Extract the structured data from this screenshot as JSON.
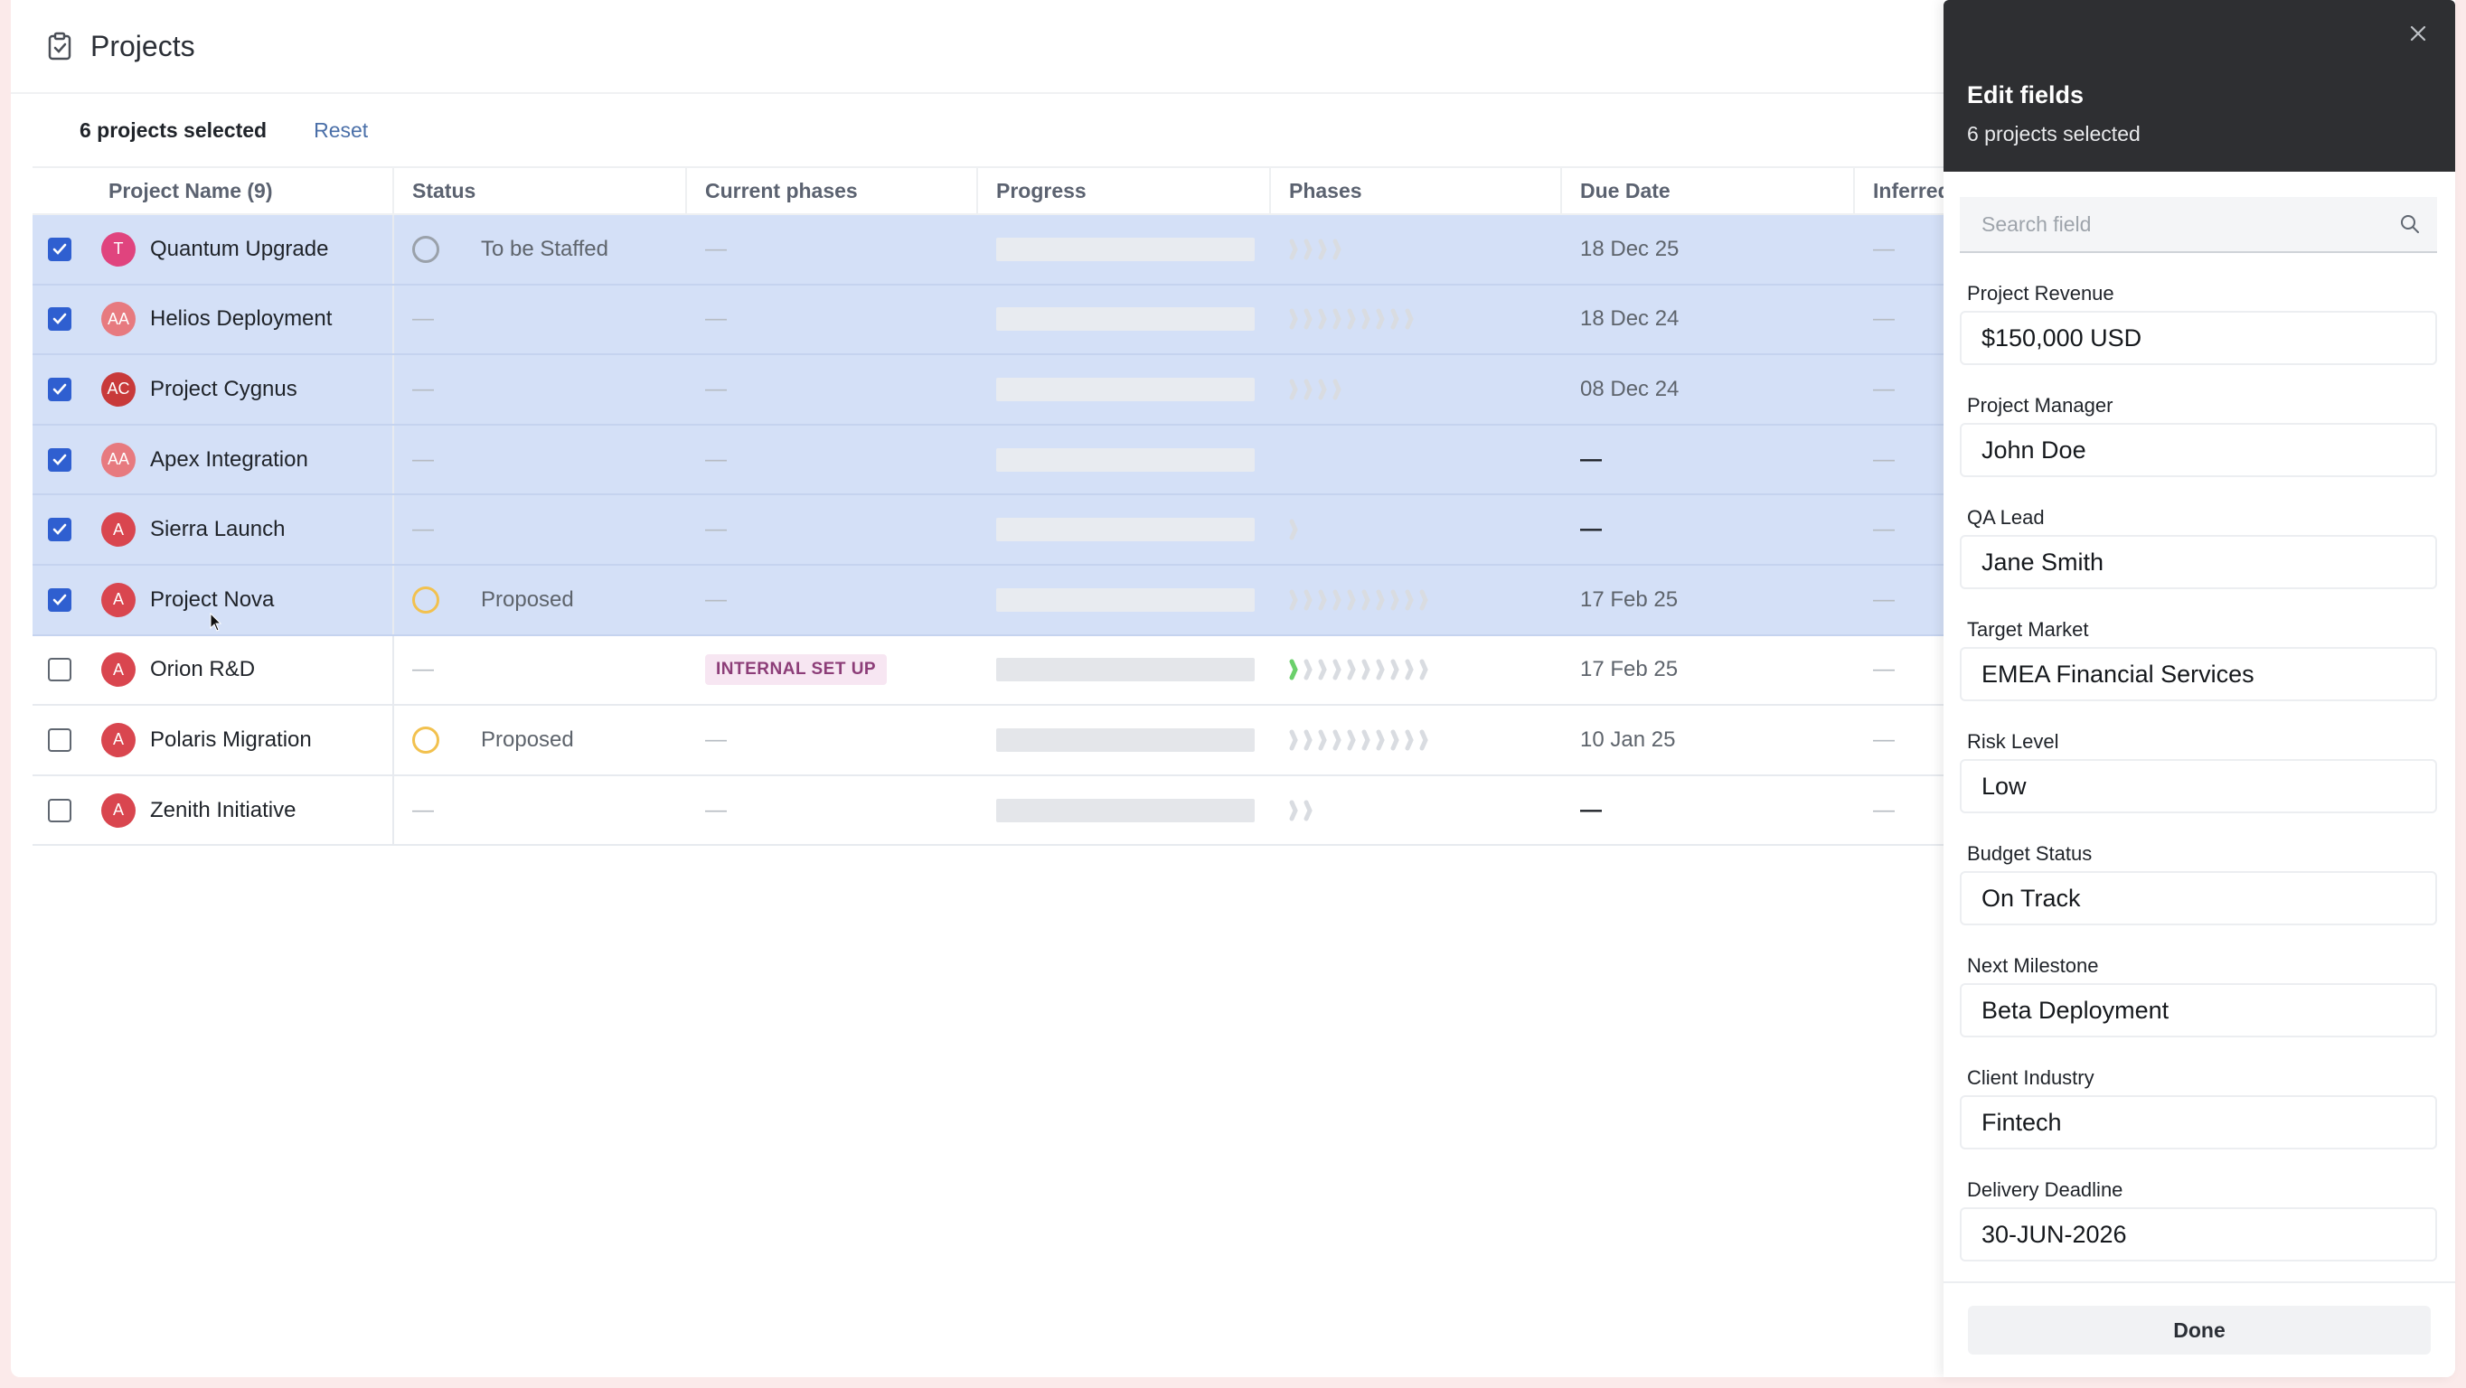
{
  "colors": {
    "selected_row": "#d4e0f7",
    "checkbox_on": "#2f5fd0",
    "panel_header": "#2e2f32",
    "badge_bg": "#f7e6f2"
  },
  "header": {
    "title": "Projects",
    "icon": "clipboard-check-icon"
  },
  "selection": {
    "count_label": "6 projects selected",
    "reset_label": "Reset"
  },
  "table": {
    "columns": [
      "Project Name (9)",
      "Status",
      "Current phases",
      "Progress",
      "Phases",
      "Due Date",
      "Inferred"
    ],
    "rows": [
      {
        "selected": true,
        "avatar": "T",
        "avatar_color": "#e0447e",
        "name": "Quantum Upgrade",
        "status": "To be Staffed",
        "status_ring": "gray",
        "phase": "—",
        "phase_badge": false,
        "phases_chevrons": 4,
        "phases_green": 0,
        "due": "18 Dec 25",
        "inferred": "—"
      },
      {
        "selected": true,
        "avatar": "AA",
        "avatar_color": "#e77a7f",
        "name": "Helios Deployment",
        "status": "—",
        "status_ring": "",
        "phase": "—",
        "phase_badge": false,
        "phases_chevrons": 9,
        "phases_green": 0,
        "due": "18 Dec 24",
        "inferred": "—"
      },
      {
        "selected": true,
        "avatar": "AC",
        "avatar_color": "#c83a3a",
        "name": "Project Cygnus",
        "status": "—",
        "status_ring": "",
        "phase": "—",
        "phase_badge": false,
        "phases_chevrons": 4,
        "phases_green": 0,
        "due": "08 Dec 24",
        "inferred": "—"
      },
      {
        "selected": true,
        "avatar": "AA",
        "avatar_color": "#e77a7f",
        "name": "Apex Integration",
        "status": "—",
        "status_ring": "",
        "phase": "—",
        "phase_badge": false,
        "phases_chevrons": 0,
        "phases_green": 0,
        "due": "—",
        "inferred": "—"
      },
      {
        "selected": true,
        "avatar": "A",
        "avatar_color": "#d9464f",
        "name": "Sierra Launch",
        "status": "—",
        "status_ring": "",
        "phase": "—",
        "phase_badge": false,
        "phases_chevrons": 1,
        "phases_green": 0,
        "due": "—",
        "inferred": "—"
      },
      {
        "selected": true,
        "avatar": "A",
        "avatar_color": "#d9464f",
        "name": "Project Nova",
        "status": "Proposed",
        "status_ring": "proposed",
        "phase": "—",
        "phase_badge": false,
        "phases_chevrons": 10,
        "phases_green": 0,
        "due": "17 Feb 25",
        "inferred": "—"
      },
      {
        "selected": false,
        "avatar": "A",
        "avatar_color": "#d9464f",
        "name": "Orion R&D",
        "status": "—",
        "status_ring": "",
        "phase": "INTERNAL SET UP",
        "phase_badge": true,
        "phases_chevrons": 10,
        "phases_green": 1,
        "due": "17 Feb 25",
        "inferred": "—"
      },
      {
        "selected": false,
        "avatar": "A",
        "avatar_color": "#d9464f",
        "name": "Polaris Migration",
        "status": "Proposed",
        "status_ring": "proposed",
        "phase": "—",
        "phase_badge": false,
        "phases_chevrons": 10,
        "phases_green": 0,
        "due": "10 Jan 25",
        "inferred": "—"
      },
      {
        "selected": false,
        "avatar": "A",
        "avatar_color": "#d9464f",
        "name": "Zenith Initiative",
        "status": "—",
        "status_ring": "",
        "phase": "—",
        "phase_badge": false,
        "phases_chevrons": 2,
        "phases_green": 0,
        "due": "—",
        "inferred": "—"
      }
    ]
  },
  "panel": {
    "title": "Edit fields",
    "subtitle": "6 projects selected",
    "search_placeholder": "Search field",
    "fields": [
      {
        "label": "Project Revenue",
        "value": "$150,000 USD"
      },
      {
        "label": "Project Manager",
        "value": "John Doe"
      },
      {
        "label": "QA Lead",
        "value": "Jane Smith"
      },
      {
        "label": "Target Market",
        "value": "EMEA Financial Services"
      },
      {
        "label": "Risk Level",
        "value": "Low"
      },
      {
        "label": "Budget Status",
        "value": "On Track"
      },
      {
        "label": "Next Milestone",
        "value": "Beta Deployment"
      },
      {
        "label": "Client Industry",
        "value": "Fintech"
      },
      {
        "label": "Delivery Deadline",
        "value": "30-JUN-2026"
      }
    ],
    "done_label": "Done"
  }
}
